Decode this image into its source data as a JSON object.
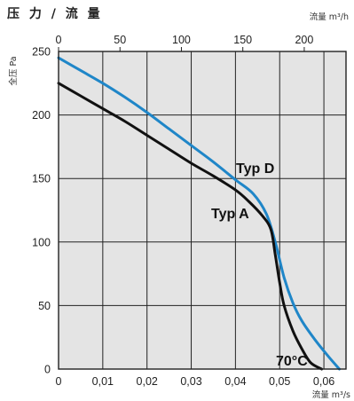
{
  "chart_data": {
    "type": "line",
    "title": "压 力 / 流 量",
    "ylabel": "全压 Pa",
    "xlabel_bottom": "流量 m³/s",
    "xlabel_top": "流量 m³/h",
    "ylim": [
      0,
      250
    ],
    "xlim_bottom": [
      0,
      0.065
    ],
    "xlim_top": [
      0,
      234
    ],
    "y_ticks": [
      "0",
      "50",
      "100",
      "150",
      "200",
      "250"
    ],
    "x_ticks_bottom": [
      "0",
      "0,01",
      "0,02",
      "0,03",
      "0,04",
      "0,05",
      "0,06"
    ],
    "x_ticks_top": [
      "0",
      "50",
      "100",
      "150",
      "200"
    ],
    "grid": true,
    "temperature_label": "70°C",
    "colors": {
      "typ_d": "#1f86c8",
      "typ_a": "#111111",
      "grid": "#222222"
    },
    "series": [
      {
        "name": "Typ D",
        "x": [
          0,
          0.005,
          0.01,
          0.015,
          0.02,
          0.025,
          0.03,
          0.035,
          0.04,
          0.044,
          0.047,
          0.049,
          0.051,
          0.053,
          0.055,
          0.058,
          0.061,
          0.0635
        ],
        "y": [
          245,
          235,
          225,
          214,
          202,
          189,
          176,
          163,
          149,
          138,
          122,
          100,
          72,
          52,
          38,
          23,
          10,
          0
        ]
      },
      {
        "name": "Typ A",
        "x": [
          0,
          0.005,
          0.01,
          0.015,
          0.02,
          0.025,
          0.03,
          0.035,
          0.04,
          0.043,
          0.046,
          0.048,
          0.049,
          0.05,
          0.051,
          0.053,
          0.055,
          0.057,
          0.0595
        ],
        "y": [
          225,
          215,
          205,
          195,
          184,
          173,
          162,
          152,
          141,
          132,
          121,
          110,
          90,
          68,
          50,
          30,
          16,
          5,
          0
        ]
      }
    ]
  }
}
